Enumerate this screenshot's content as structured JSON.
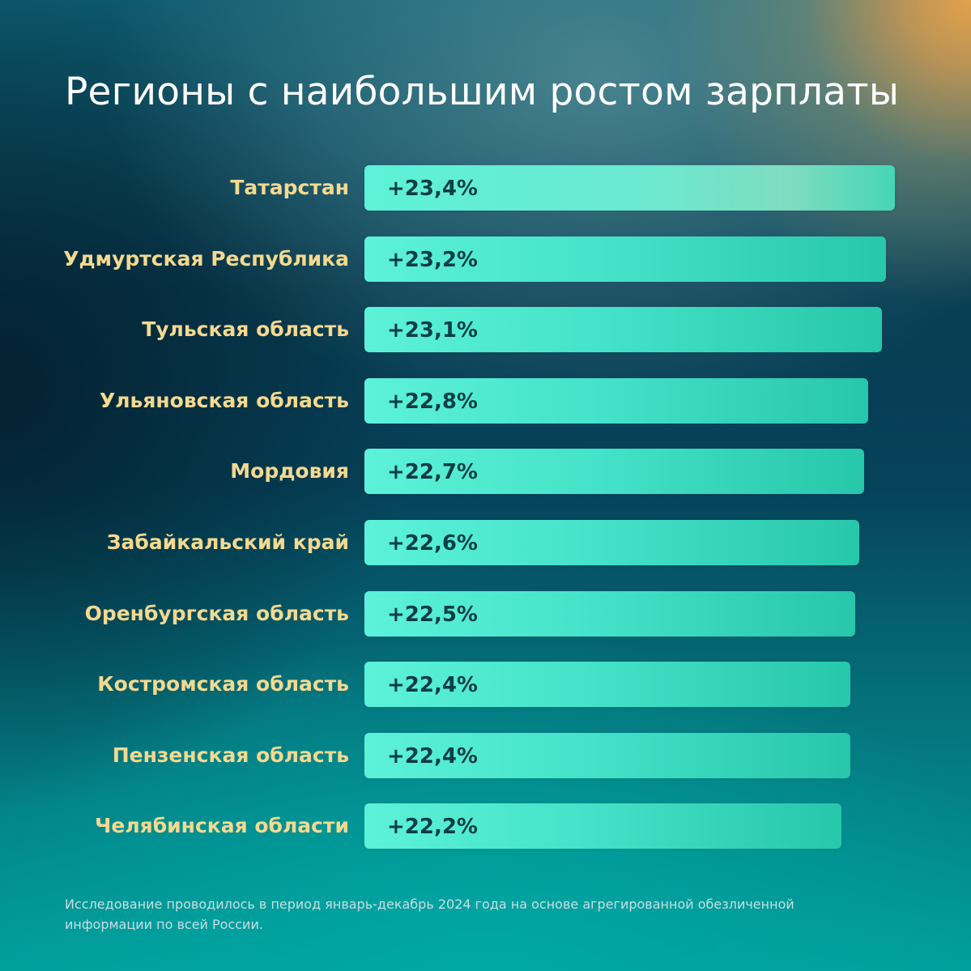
{
  "chart_data": {
    "type": "bar",
    "orientation": "horizontal",
    "title": "Регионы с наибольшим ростом зарплаты",
    "categories": [
      "Татарстан",
      "Удмуртская Республика",
      "Тульская область",
      "Ульяновская область",
      "Мордовия",
      "Забайкальский край",
      "Оренбургская область",
      "Костромская область",
      "Пензенская область",
      "Челябинская области"
    ],
    "values": [
      23.4,
      23.2,
      23.1,
      22.8,
      22.7,
      22.6,
      22.5,
      22.4,
      22.4,
      22.2
    ],
    "value_labels": [
      "+23,4%",
      "+23,2%",
      "+23,1%",
      "+22,8%",
      "+22,7%",
      "+22,6%",
      "+22,5%",
      "+22,4%",
      "+22,4%",
      "+22,2%"
    ],
    "unit": "%",
    "grid": false,
    "colors": {
      "bar_start": "#5cf2d9",
      "bar_end": "#27c7ab",
      "label": "#f4d98f",
      "value_text": "#0c3d45",
      "title": "#ffffff"
    }
  },
  "footnote": "Исследование проводилось в период январь-декабрь 2024 года на основе агрегированной обезличенной информации по всей России."
}
